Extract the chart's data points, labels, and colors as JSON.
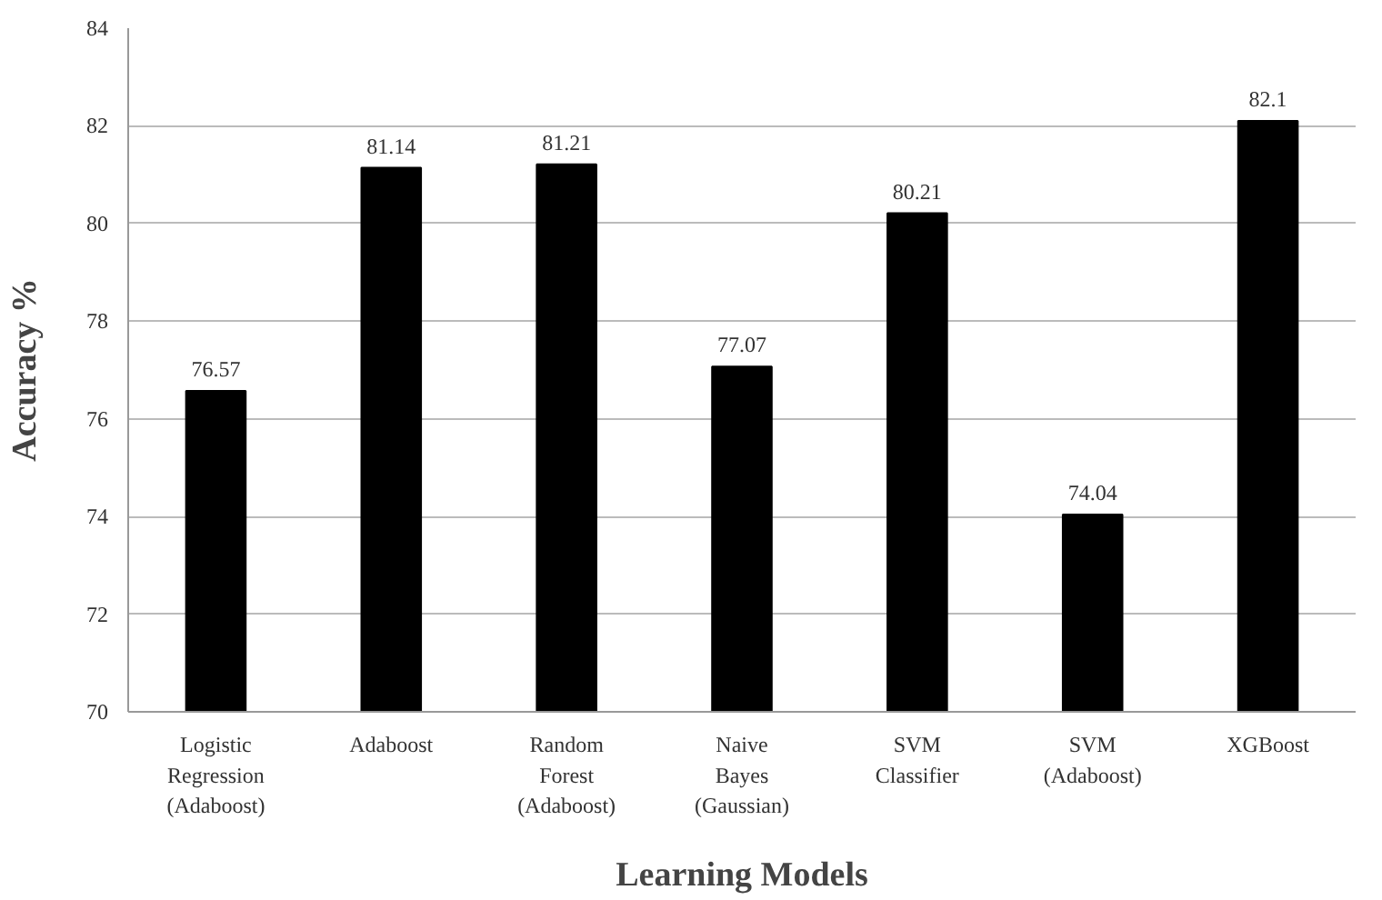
{
  "chart_data": {
    "type": "bar",
    "xlabel": "Learning Models",
    "ylabel": "Accuracy %",
    "categories": [
      "Logistic Regression (Adaboost)",
      "Adaboost",
      "Random Forest (Adaboost)",
      "Naive Bayes (Gaussian)",
      "SVM Classifier",
      "SVM (Adaboost)",
      "XGBoost"
    ],
    "values": [
      76.57,
      81.14,
      81.21,
      77.07,
      80.21,
      74.04,
      82.1
    ],
    "color": "#000000",
    "ylim": [
      70,
      84
    ],
    "yticks": [
      70,
      72,
      74,
      76,
      78,
      80,
      82,
      84
    ],
    "grid": "y",
    "data_labels": true
  }
}
